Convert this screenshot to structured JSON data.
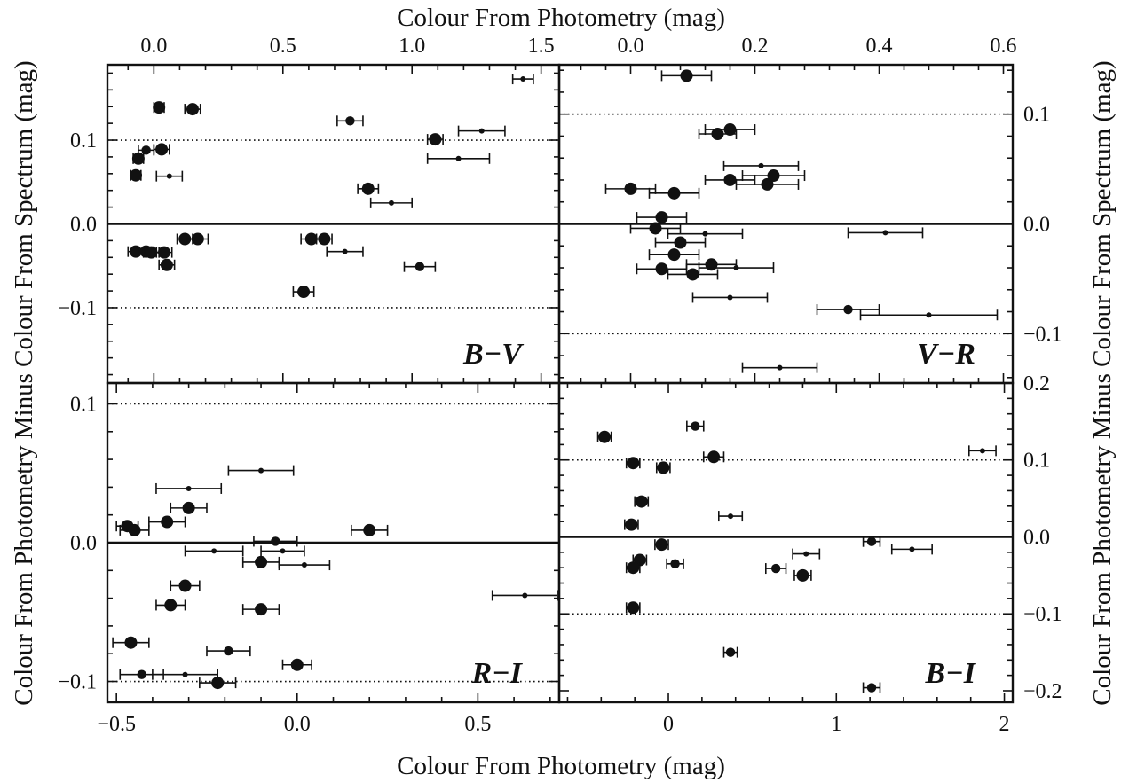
{
  "figure": {
    "top_xlabel": "Colour From Photometry (mag)",
    "bottom_xlabel": "Colour From Photometry (mag)",
    "left_ylabel": "Colour From Photometry Minus Colour From Spectrum (mag)",
    "right_ylabel": "Colour From Photometry Minus Colour From Spectrum (mag)"
  },
  "chart_data": [
    {
      "type": "scatter",
      "panel": "top-left",
      "label": "B−V",
      "xlabel": "Colour From Photometry (mag)",
      "ylabel": "Colour From Photometry Minus Colour From Spectrum (mag)",
      "xlim": [
        -0.18,
        1.57
      ],
      "ylim": [
        -0.19,
        0.19
      ],
      "xticks": [
        0.0,
        0.5,
        1.0,
        1.5
      ],
      "xtick_labels": [
        "0.0",
        "0.5",
        "1.0",
        "1.5"
      ],
      "yticks": [
        -0.1,
        0.0,
        0.1
      ],
      "ytick_labels": [
        "−0.1",
        "0.0",
        "0.1"
      ],
      "x_axis_position": "top",
      "y_axis_position": "left",
      "reference_lines": [
        {
          "y": 0.0,
          "style": "solid"
        },
        {
          "y": 0.1,
          "style": "dotted"
        },
        {
          "y": -0.1,
          "style": "dotted"
        }
      ],
      "points": [
        {
          "x": 1.43,
          "y": 0.173,
          "xerr": 0.04,
          "size": "small"
        },
        {
          "x": 0.02,
          "y": 0.139,
          "xerr": 0.02,
          "size": "large"
        },
        {
          "x": 0.15,
          "y": 0.137,
          "xerr": 0.03,
          "size": "large"
        },
        {
          "x": 0.76,
          "y": 0.123,
          "xerr": 0.05,
          "size": "medium"
        },
        {
          "x": 1.27,
          "y": 0.111,
          "xerr": 0.09,
          "size": "small"
        },
        {
          "x": 1.09,
          "y": 0.101,
          "xerr": 0.03,
          "size": "large"
        },
        {
          "x": -0.03,
          "y": 0.088,
          "xerr": 0.03,
          "size": "medium"
        },
        {
          "x": 0.03,
          "y": 0.089,
          "xerr": 0.03,
          "size": "large"
        },
        {
          "x": -0.06,
          "y": 0.078,
          "xerr": 0.02,
          "size": "large"
        },
        {
          "x": 1.18,
          "y": 0.078,
          "xerr": 0.12,
          "size": "small"
        },
        {
          "x": -0.07,
          "y": 0.058,
          "xerr": 0.02,
          "size": "large"
        },
        {
          "x": 0.06,
          "y": 0.057,
          "xerr": 0.05,
          "size": "small"
        },
        {
          "x": 0.83,
          "y": 0.042,
          "xerr": 0.04,
          "size": "large"
        },
        {
          "x": 0.92,
          "y": 0.025,
          "xerr": 0.08,
          "size": "small"
        },
        {
          "x": 0.12,
          "y": -0.018,
          "xerr": 0.03,
          "size": "large"
        },
        {
          "x": 0.17,
          "y": -0.018,
          "xerr": 0.04,
          "size": "large"
        },
        {
          "x": 0.61,
          "y": -0.018,
          "xerr": 0.04,
          "size": "large"
        },
        {
          "x": 0.66,
          "y": -0.018,
          "xerr": 0.03,
          "size": "large"
        },
        {
          "x": -0.07,
          "y": -0.033,
          "xerr": 0.03,
          "size": "large"
        },
        {
          "x": -0.03,
          "y": -0.033,
          "xerr": 0.03,
          "size": "large"
        },
        {
          "x": -0.01,
          "y": -0.034,
          "xerr": 0.03,
          "size": "large"
        },
        {
          "x": 0.04,
          "y": -0.034,
          "xerr": 0.03,
          "size": "large"
        },
        {
          "x": 0.74,
          "y": -0.033,
          "xerr": 0.07,
          "size": "small"
        },
        {
          "x": 0.05,
          "y": -0.049,
          "xerr": 0.03,
          "size": "large"
        },
        {
          "x": 1.03,
          "y": -0.051,
          "xerr": 0.06,
          "size": "medium"
        },
        {
          "x": 0.58,
          "y": -0.081,
          "xerr": 0.04,
          "size": "large"
        }
      ]
    },
    {
      "type": "scatter",
      "panel": "top-right",
      "label": "V−R",
      "xlabel": "Colour From Photometry (mag)",
      "ylabel": "Colour From Photometry Minus Colour From Spectrum (mag)",
      "xlim": [
        -0.115,
        0.615
      ],
      "ylim": [
        -0.145,
        0.145
      ],
      "xticks": [
        0.0,
        0.2,
        0.4,
        0.6
      ],
      "xtick_labels": [
        "0.0",
        "0.2",
        "0.4",
        "0.6"
      ],
      "yticks": [
        -0.1,
        0.0,
        0.1
      ],
      "ytick_labels": [
        "−0.1",
        "0.0",
        "0.1"
      ],
      "x_axis_position": "top",
      "y_axis_position": "right",
      "reference_lines": [
        {
          "y": 0.0,
          "style": "solid"
        },
        {
          "y": 0.1,
          "style": "dotted"
        },
        {
          "y": -0.1,
          "style": "dotted"
        }
      ],
      "points": [
        {
          "x": 0.09,
          "y": 0.135,
          "xerr": 0.04,
          "size": "large"
        },
        {
          "x": 0.14,
          "y": 0.082,
          "xerr": 0.03,
          "size": "large"
        },
        {
          "x": 0.16,
          "y": 0.086,
          "xerr": 0.04,
          "size": "large"
        },
        {
          "x": 0.21,
          "y": 0.053,
          "xerr": 0.06,
          "size": "small"
        },
        {
          "x": 0.23,
          "y": 0.044,
          "xerr": 0.05,
          "size": "large"
        },
        {
          "x": 0.16,
          "y": 0.04,
          "xerr": 0.04,
          "size": "large"
        },
        {
          "x": 0.22,
          "y": 0.036,
          "xerr": 0.05,
          "size": "large"
        },
        {
          "x": -0.0,
          "y": 0.032,
          "xerr": 0.04,
          "size": "large"
        },
        {
          "x": 0.07,
          "y": 0.028,
          "xerr": 0.04,
          "size": "large"
        },
        {
          "x": 0.05,
          "y": 0.006,
          "xerr": 0.04,
          "size": "large"
        },
        {
          "x": 0.04,
          "y": -0.004,
          "xerr": 0.04,
          "size": "large"
        },
        {
          "x": 0.12,
          "y": -0.009,
          "xerr": 0.06,
          "size": "small"
        },
        {
          "x": 0.41,
          "y": -0.008,
          "xerr": 0.06,
          "size": "small"
        },
        {
          "x": 0.08,
          "y": -0.017,
          "xerr": 0.04,
          "size": "large"
        },
        {
          "x": 0.07,
          "y": -0.028,
          "xerr": 0.04,
          "size": "large"
        },
        {
          "x": 0.13,
          "y": -0.037,
          "xerr": 0.04,
          "size": "large"
        },
        {
          "x": 0.05,
          "y": -0.041,
          "xerr": 0.04,
          "size": "large"
        },
        {
          "x": 0.17,
          "y": -0.04,
          "xerr": 0.06,
          "size": "small"
        },
        {
          "x": 0.1,
          "y": -0.046,
          "xerr": 0.04,
          "size": "large"
        },
        {
          "x": 0.16,
          "y": -0.067,
          "xerr": 0.06,
          "size": "small"
        },
        {
          "x": 0.35,
          "y": -0.078,
          "xerr": 0.05,
          "size": "medium"
        },
        {
          "x": 0.48,
          "y": -0.083,
          "xerr": 0.11,
          "size": "small"
        },
        {
          "x": 0.24,
          "y": -0.131,
          "xerr": 0.06,
          "size": "small"
        }
      ]
    },
    {
      "type": "scatter",
      "panel": "bottom-left",
      "label": "R−I",
      "xlabel": "Colour From Photometry (mag)",
      "ylabel": "Colour From Photometry Minus Colour From Spectrum (mag)",
      "xlim": [
        -0.525,
        0.725
      ],
      "ylim": [
        -0.115,
        0.115
      ],
      "xticks": [
        -0.5,
        0.0,
        0.5
      ],
      "xtick_labels": [
        "−0.5",
        "0.0",
        "0.5"
      ],
      "yticks": [
        -0.1,
        0.0,
        0.1
      ],
      "ytick_labels": [
        "−0.1",
        "0.0",
        "0.1"
      ],
      "x_axis_position": "bottom",
      "y_axis_position": "left",
      "reference_lines": [
        {
          "y": 0.0,
          "style": "solid"
        },
        {
          "y": 0.1,
          "style": "dotted"
        },
        {
          "y": -0.1,
          "style": "dotted"
        }
      ],
      "points": [
        {
          "x": -0.1,
          "y": 0.052,
          "xerr": 0.09,
          "size": "small"
        },
        {
          "x": -0.3,
          "y": 0.039,
          "xerr": 0.09,
          "size": "small"
        },
        {
          "x": -0.3,
          "y": 0.025,
          "xerr": 0.05,
          "size": "large"
        },
        {
          "x": -0.36,
          "y": 0.015,
          "xerr": 0.05,
          "size": "large"
        },
        {
          "x": -0.47,
          "y": 0.012,
          "xerr": 0.03,
          "size": "large"
        },
        {
          "x": -0.45,
          "y": 0.009,
          "xerr": 0.04,
          "size": "large"
        },
        {
          "x": 0.2,
          "y": 0.009,
          "xerr": 0.05,
          "size": "large"
        },
        {
          "x": -0.06,
          "y": 0.001,
          "xerr": 0.06,
          "size": "medium"
        },
        {
          "x": -0.23,
          "y": -0.006,
          "xerr": 0.08,
          "size": "small"
        },
        {
          "x": -0.04,
          "y": -0.006,
          "xerr": 0.06,
          "size": "small"
        },
        {
          "x": -0.1,
          "y": -0.014,
          "xerr": 0.05,
          "size": "large"
        },
        {
          "x": 0.02,
          "y": -0.016,
          "xerr": 0.07,
          "size": "small"
        },
        {
          "x": -0.31,
          "y": -0.031,
          "xerr": 0.04,
          "size": "large"
        },
        {
          "x": 0.63,
          "y": -0.038,
          "xerr": 0.09,
          "size": "small"
        },
        {
          "x": -0.35,
          "y": -0.045,
          "xerr": 0.04,
          "size": "large"
        },
        {
          "x": -0.1,
          "y": -0.048,
          "xerr": 0.05,
          "size": "large"
        },
        {
          "x": -0.46,
          "y": -0.072,
          "xerr": 0.05,
          "size": "large"
        },
        {
          "x": -0.19,
          "y": -0.078,
          "xerr": 0.06,
          "size": "medium"
        },
        {
          "x": 0.0,
          "y": -0.088,
          "xerr": 0.04,
          "size": "large"
        },
        {
          "x": -0.43,
          "y": -0.095,
          "xerr": 0.06,
          "size": "medium"
        },
        {
          "x": -0.31,
          "y": -0.095,
          "xerr": 0.09,
          "size": "small"
        },
        {
          "x": -0.22,
          "y": -0.101,
          "xerr": 0.05,
          "size": "large"
        }
      ]
    },
    {
      "type": "scatter",
      "panel": "bottom-right",
      "label": "B−I",
      "xlabel": "Colour From Photometry (mag)",
      "ylabel": "Colour From Photometry Minus Colour From Spectrum (mag)",
      "xlim": [
        -0.65,
        2.05
      ],
      "ylim": [
        -0.215,
        0.2
      ],
      "xticks": [
        0,
        1,
        2
      ],
      "xtick_labels": [
        "0",
        "1",
        "2"
      ],
      "yticks": [
        -0.2,
        -0.1,
        0.0,
        0.1,
        0.2
      ],
      "ytick_labels": [
        "−0.2",
        "−0.1",
        "0.0",
        "0.1",
        "0.2"
      ],
      "x_axis_position": "bottom",
      "y_axis_position": "right",
      "reference_lines": [
        {
          "y": 0.0,
          "style": "solid"
        },
        {
          "y": 0.1,
          "style": "dotted"
        },
        {
          "y": -0.1,
          "style": "dotted"
        }
      ],
      "points": [
        {
          "x": 0.16,
          "y": 0.144,
          "xerr": 0.05,
          "size": "medium"
        },
        {
          "x": -0.38,
          "y": 0.13,
          "xerr": 0.04,
          "size": "large"
        },
        {
          "x": 1.87,
          "y": 0.112,
          "xerr": 0.08,
          "size": "small"
        },
        {
          "x": 0.27,
          "y": 0.104,
          "xerr": 0.06,
          "size": "large"
        },
        {
          "x": -0.21,
          "y": 0.096,
          "xerr": 0.04,
          "size": "large"
        },
        {
          "x": -0.03,
          "y": 0.09,
          "xerr": 0.04,
          "size": "large"
        },
        {
          "x": -0.16,
          "y": 0.046,
          "xerr": 0.04,
          "size": "large"
        },
        {
          "x": 0.37,
          "y": 0.027,
          "xerr": 0.07,
          "size": "small"
        },
        {
          "x": -0.22,
          "y": 0.016,
          "xerr": 0.04,
          "size": "large"
        },
        {
          "x": 1.21,
          "y": -0.006,
          "xerr": 0.05,
          "size": "medium"
        },
        {
          "x": 1.45,
          "y": -0.016,
          "xerr": 0.12,
          "size": "small"
        },
        {
          "x": -0.04,
          "y": -0.01,
          "xerr": 0.04,
          "size": "large"
        },
        {
          "x": 0.82,
          "y": -0.022,
          "xerr": 0.08,
          "size": "small"
        },
        {
          "x": -0.17,
          "y": -0.03,
          "xerr": 0.04,
          "size": "large"
        },
        {
          "x": 0.04,
          "y": -0.035,
          "xerr": 0.05,
          "size": "medium"
        },
        {
          "x": -0.21,
          "y": -0.04,
          "xerr": 0.04,
          "size": "large"
        },
        {
          "x": 0.64,
          "y": -0.041,
          "xerr": 0.06,
          "size": "medium"
        },
        {
          "x": 0.8,
          "y": -0.05,
          "xerr": 0.05,
          "size": "large"
        },
        {
          "x": -0.21,
          "y": -0.092,
          "xerr": 0.04,
          "size": "large"
        },
        {
          "x": 0.37,
          "y": -0.15,
          "xerr": 0.04,
          "size": "medium"
        },
        {
          "x": 1.21,
          "y": -0.196,
          "xerr": 0.05,
          "size": "medium"
        }
      ]
    }
  ]
}
